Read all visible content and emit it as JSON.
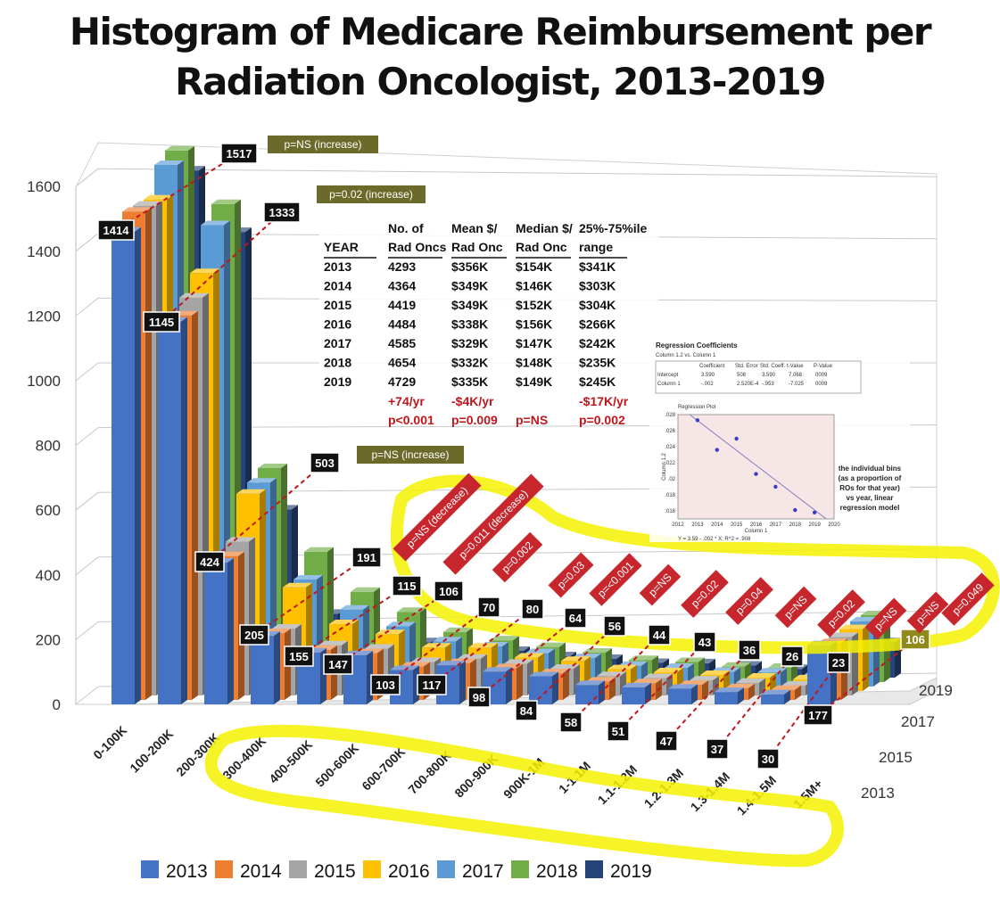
{
  "title_lines": [
    "Histogram of Medicare Reimbursement per",
    "Radiation Oncologist, 2013-2019"
  ],
  "chart_data": {
    "type": "bar",
    "subtype": "3d-column",
    "title": "Histogram of Medicare Reimbursement per Radiation Oncologist, 2013-2019",
    "y_ticks": [
      "0",
      "200",
      "400",
      "600",
      "800",
      "1000",
      "1200",
      "1400",
      "1600"
    ],
    "ylim": [
      0,
      1600
    ],
    "depth_labels": [
      "2013",
      "2015",
      "2017",
      "2019"
    ],
    "categories": [
      "0-100K",
      "100-200K",
      "200-300K",
      "300-400K",
      "400-500K",
      "500-600K",
      "600-700K",
      "700-800K",
      "800-900K",
      "900K-1M",
      "1-1.1M",
      "1.1-1.2M",
      "1.2-1.3M",
      "1.3-1.4M",
      "1.4-1.5M",
      "1.5M+"
    ],
    "series": [
      {
        "name": "2013",
        "color": "#4472C4",
        "values": [
          1414,
          1145,
          424,
          205,
          155,
          147,
          103,
          117,
          98,
          84,
          58,
          51,
          47,
          37,
          30,
          177
        ]
      },
      {
        "name": "2014",
        "color": "#ED7D31",
        "values": [
          1460,
          1150,
          430,
          200,
          150,
          140,
          100,
          110,
          95,
          80,
          55,
          50,
          45,
          35,
          30,
          170
        ]
      },
      {
        "name": "2015",
        "color": "#A5A5A5",
        "values": [
          1465,
          1190,
          460,
          200,
          150,
          140,
          100,
          110,
          95,
          80,
          58,
          52,
          45,
          38,
          30,
          175
        ]
      },
      {
        "name": "2016",
        "color": "#FFC000",
        "values": [
          1470,
          1250,
          590,
          310,
          200,
          170,
          130,
          130,
          100,
          90,
          65,
          56,
          48,
          40,
          35,
          185
        ]
      },
      {
        "name": "2017",
        "color": "#5B9BD5",
        "values": [
          1560,
          1380,
          610,
          320,
          230,
          180,
          135,
          120,
          100,
          85,
          62,
          56,
          44,
          42,
          34,
          195
        ]
      },
      {
        "name": "2018",
        "color": "#70AD47",
        "values": [
          1590,
          1430,
          640,
          390,
          270,
          210,
          150,
          125,
          105,
          88,
          66,
          60,
          46,
          43,
          36,
          200
        ]
      },
      {
        "name": "2019",
        "color": "#264478",
        "values": [
          1517,
          1333,
          503,
          191,
          115,
          106,
          70,
          80,
          64,
          56,
          44,
          43,
          36,
          26,
          23,
          106
        ]
      }
    ],
    "bar_labels_2013": [
      "1414",
      "1145",
      "424",
      "205",
      "155",
      "147",
      "103",
      "117",
      "98",
      "84",
      "58",
      "51",
      "47",
      "37",
      "30",
      "177"
    ],
    "bar_labels_2019": [
      "1517",
      "1333",
      "503",
      "191",
      "115",
      "106",
      "70",
      "80",
      "64",
      "56",
      "44",
      "43",
      "36",
      "26",
      "23",
      "106"
    ],
    "trend_labels": [
      "p=NS (increase)",
      "p=0.02 (increase)",
      "p=NS (increase)",
      "p=NS (decrease)",
      "p=0.011 (decrease)",
      "p=0.002",
      "p=0.03",
      "p=<0.001",
      "p=NS",
      "p=0.02",
      "p=0.04",
      "p=NS",
      "p=0.02",
      "p=NS",
      "p=NS",
      "p=0.049"
    ],
    "legend": [
      "2013",
      "2014",
      "2015",
      "2016",
      "2017",
      "2018",
      "2019"
    ]
  },
  "summary_table": {
    "header_row1": [
      "",
      "No. of",
      "Mean $/",
      "Median $/",
      "25%-75%ile"
    ],
    "header_row2": [
      "YEAR",
      "Rad Oncs",
      "Rad Onc",
      "Rad Onc",
      "range"
    ],
    "rows": [
      [
        "2013",
        "4293",
        "$356K",
        "$154K",
        "$341K"
      ],
      [
        "2014",
        "4364",
        "$349K",
        "$146K",
        "$303K"
      ],
      [
        "2015",
        "4419",
        "$349K",
        "$152K",
        "$304K"
      ],
      [
        "2016",
        "4484",
        "$338K",
        "$156K",
        "$266K"
      ],
      [
        "2017",
        "4585",
        "$329K",
        "$147K",
        "$242K"
      ],
      [
        "2018",
        "4654",
        "$332K",
        "$148K",
        "$235K"
      ],
      [
        "2019",
        "4729",
        "$335K",
        "$149K",
        "$245K"
      ]
    ],
    "trend_row": [
      "",
      "+74/yr",
      "-$4K/yr",
      "",
      "-$17K/yr"
    ],
    "p_row": [
      "",
      "p<0.001",
      "p=0.009",
      "p=NS",
      "p=0.002"
    ]
  },
  "regression_inset": {
    "title1": "Regression Coefficients",
    "title2": "Column 1.2 vs. Column 1",
    "col_headers": [
      "Coefficient",
      "Std. Error",
      "Std. Coeff.",
      "t-Value",
      "P-Value"
    ],
    "row1": [
      "Intercept",
      "3.590",
      "508",
      "3.590",
      "7.068",
      "0009"
    ],
    "row2": [
      "Column 1",
      "-.002",
      "2.520E-4",
      "-.953",
      "-7.025",
      "0009"
    ],
    "plot_title": "Regression Plot",
    "y_axis_label": "Column 1.2",
    "x_axis_label": "Column 1",
    "y_ticks": [
      ".016",
      ".018",
      ".02",
      ".022",
      ".024",
      ".026",
      ".028"
    ],
    "x_ticks": [
      "2012",
      "2013",
      "2014",
      "2015",
      "2016",
      "2017",
      "2018",
      "2019",
      "2020"
    ],
    "points": [
      [
        2013,
        0.0273
      ],
      [
        2014,
        0.0236
      ],
      [
        2015,
        0.025
      ],
      [
        2016,
        0.0206
      ],
      [
        2017,
        0.019
      ],
      [
        2018,
        0.0161
      ],
      [
        2019,
        0.0158
      ]
    ],
    "ylim": [
      0.015,
      0.028
    ],
    "xlim": [
      2012,
      2020
    ],
    "equation": "Y = 3.59 - .002 * X; R^2 = .908",
    "note_lines": [
      "the individual bins",
      "(as a proportion of",
      "ROs for that year)",
      "vs year, linear",
      "regression model"
    ]
  },
  "colors": {
    "olive": "#6b6a2a",
    "red": "#c8262d",
    "highlight": "#f4f100",
    "dash": "#c0161c"
  }
}
